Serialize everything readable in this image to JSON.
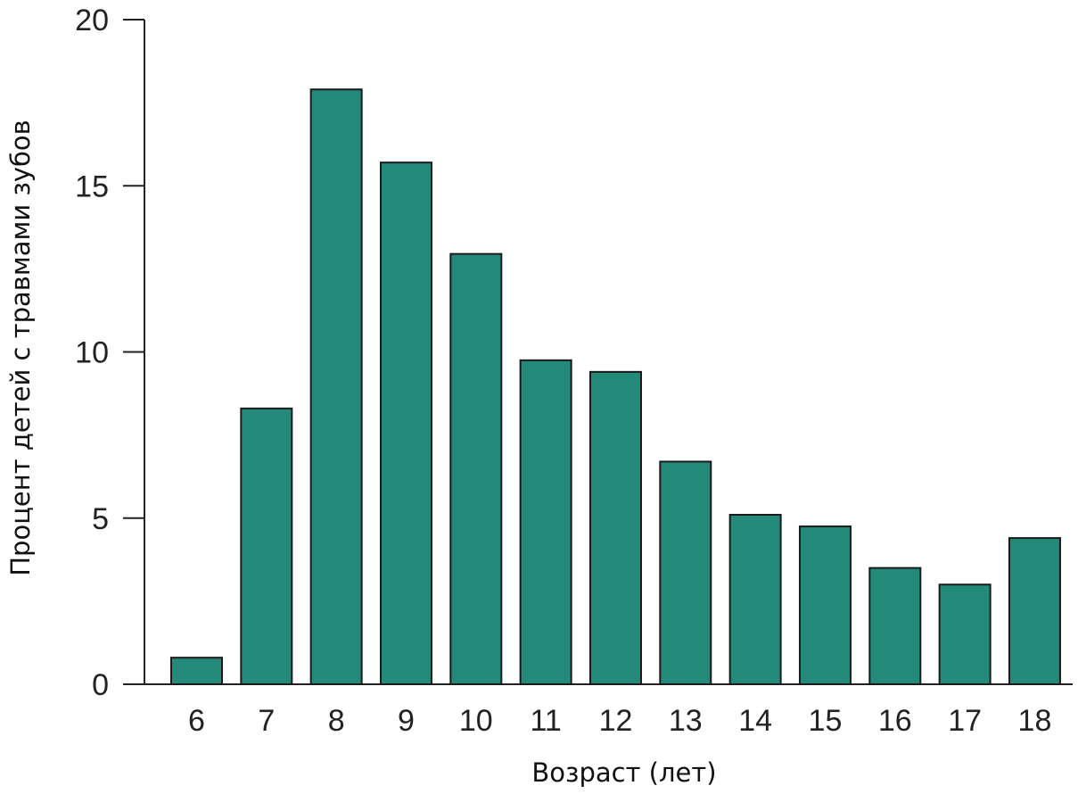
{
  "chart_data": {
    "type": "bar",
    "categories": [
      "6",
      "7",
      "8",
      "9",
      "10",
      "11",
      "12",
      "13",
      "14",
      "15",
      "16",
      "17",
      "18"
    ],
    "values": [
      0.8,
      8.3,
      17.9,
      15.7,
      12.95,
      9.75,
      9.4,
      6.7,
      5.1,
      4.75,
      3.5,
      3.0,
      4.4
    ],
    "xlabel": "Возраст (лет)",
    "ylabel": "Процент детей с травмами зубов",
    "ylim": [
      0,
      20
    ],
    "yticks": [
      "0",
      "5",
      "10",
      "15",
      "20"
    ],
    "grid": false,
    "bar_color": "#238a7a"
  }
}
